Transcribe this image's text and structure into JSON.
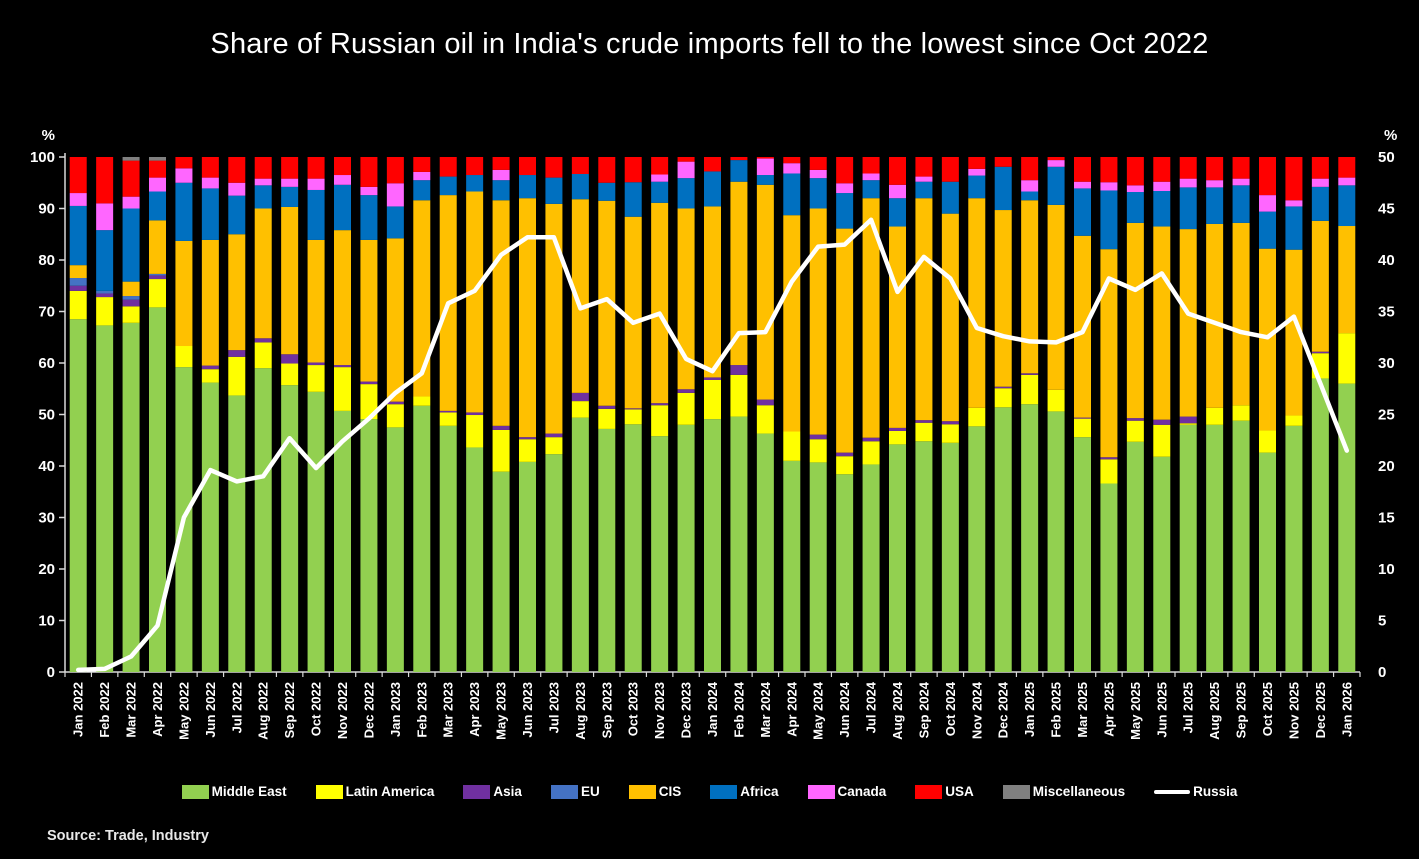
{
  "title": "Share of Russian oil in India's crude imports fell to the lowest since Oct 2022",
  "source": "Source: Trade, Industry",
  "left_axis_unit": "%",
  "right_axis_unit": "%",
  "colors": {
    "background": "#000000",
    "axis": "#d9d9d9",
    "text": "#ffffff",
    "middle_east": "#92d050",
    "latin_america": "#ffff00",
    "asia": "#7030a0",
    "eu": "#4472c4",
    "cis": "#ffc000",
    "africa": "#0070c0",
    "canada": "#ff66ff",
    "usa": "#ff0000",
    "miscellaneous": "#808080",
    "russia_line": "#ffffff"
  },
  "chart_data": {
    "type": "bar",
    "subtype": "stacked-100-with-line",
    "title": "Share of Russian oil in India's crude imports fell to the lowest since Oct 2022",
    "xlabel": "",
    "ylabel_left": "%",
    "ylabel_right": "%",
    "ylim_left": [
      0,
      100
    ],
    "ytick_step_left": 10,
    "ylim_right": [
      0,
      50
    ],
    "ytick_step_right": 5,
    "grid": false,
    "legend_position": "bottom",
    "categories": [
      "Jan 2022",
      "Feb 2022",
      "Mar 2022",
      "Apr 2022",
      "May 2022",
      "Jun 2022",
      "Jul 2022",
      "Aug 2022",
      "Sep 2022",
      "Oct 2022",
      "Nov 2022",
      "Dec 2022",
      "Jan 2023",
      "Feb 2023",
      "Mar 2023",
      "Apr 2023",
      "May 2023",
      "Jun 2023",
      "Jul 2023",
      "Aug 2023",
      "Sep 2023",
      "Oct 2023",
      "Nov 2023",
      "Dec 2023",
      "Jan 2024",
      "Feb 2024",
      "Mar 2024",
      "Apr 2024",
      "May 2024",
      "Jun 2024",
      "Jul 2024",
      "Aug 2024",
      "Sep 2024",
      "Oct 2024",
      "Nov 2024",
      "Dec 2024",
      "Jan 2025",
      "Feb 2025",
      "Mar 2025",
      "Apr 2025",
      "May 2025",
      "Jun 2025",
      "Jul 2025",
      "Aug 2025",
      "Sep 2025",
      "Oct 2025",
      "Nov 2025",
      "Dec 2025",
      "Jan 2026"
    ],
    "series": [
      {
        "name": "Middle East",
        "color_key": "middle_east",
        "axis": "left",
        "values": [
          68.5,
          67.3,
          67.8,
          70.8,
          59.2,
          56.2,
          53.7,
          59.0,
          55.7,
          54.4,
          50.7,
          49.1,
          47.5,
          51.7,
          47.8,
          43.6,
          38.9,
          40.8,
          42.3,
          49.4,
          47.2,
          48.1,
          45.8,
          48.0,
          49.1,
          49.6,
          46.3,
          41.0,
          40.7,
          38.4,
          40.3,
          44.2,
          44.8,
          44.5,
          47.7,
          51.4,
          52.0,
          50.6,
          45.6,
          36.6,
          44.7,
          41.8,
          48.0,
          48.0,
          48.8,
          42.6,
          47.8,
          57.0,
          56.0
        ]
      },
      {
        "name": "Latin America",
        "color_key": "latin_america",
        "axis": "left",
        "values": [
          5.5,
          5.5,
          3.2,
          5.5,
          4.1,
          2.6,
          7.5,
          5.0,
          4.2,
          5.2,
          8.5,
          6.8,
          4.5,
          1.8,
          2.6,
          6.3,
          8.1,
          4.4,
          3.3,
          3.2,
          3.9,
          2.9,
          6.0,
          6.2,
          7.6,
          8.1,
          5.5,
          5.7,
          4.5,
          3.5,
          4.5,
          2.6,
          3.6,
          3.6,
          3.6,
          3.7,
          5.7,
          4.2,
          3.6,
          4.7,
          4.1,
          6.2,
          0.3,
          3.3,
          3.0,
          4.3,
          2.0,
          4.9,
          9.8
        ]
      },
      {
        "name": "Asia",
        "color_key": "asia",
        "axis": "left",
        "values": [
          1.0,
          0.7,
          1.3,
          0.7,
          0,
          0.7,
          1.3,
          0.8,
          1.8,
          0.5,
          0.4,
          0.5,
          0.5,
          0,
          0.3,
          0.5,
          0.8,
          0.4,
          0.7,
          1.6,
          0.6,
          0.2,
          0.4,
          0.7,
          0.5,
          1.9,
          1.1,
          0,
          0.9,
          0.7,
          0.7,
          0.6,
          0.5,
          0.6,
          0,
          0.3,
          0.3,
          0,
          0.2,
          0.4,
          0.5,
          1.0,
          1.3,
          0,
          0,
          0,
          0,
          0.3,
          0
        ]
      },
      {
        "name": "EU",
        "color_key": "eu",
        "axis": "left",
        "values": [
          1.5,
          0.5,
          0.7,
          0.3,
          0,
          0,
          0,
          0,
          0,
          0,
          0,
          0,
          0,
          0,
          0,
          0,
          0,
          0,
          0,
          0,
          0,
          0,
          0,
          0,
          0,
          0,
          0,
          0,
          0,
          0,
          0,
          0,
          0,
          0,
          0,
          0,
          0,
          0,
          0,
          0,
          0,
          0,
          0,
          0,
          0,
          0,
          0,
          0,
          0
        ]
      },
      {
        "name": "CIS",
        "color_key": "cis",
        "axis": "left",
        "values": [
          2.5,
          0,
          2.8,
          10.4,
          20.4,
          24.4,
          22.5,
          25.2,
          28.6,
          23.8,
          26.2,
          27.5,
          31.7,
          38.1,
          41.9,
          42.9,
          43.8,
          46.4,
          44.6,
          37.6,
          39.8,
          37.2,
          38.9,
          35.1,
          33.2,
          35.6,
          41.7,
          42.0,
          43.9,
          43.5,
          46.5,
          39.1,
          43.1,
          40.3,
          40.7,
          34.3,
          33.6,
          35.9,
          35.3,
          40.4,
          37.9,
          37.5,
          36.4,
          35.7,
          35.4,
          35.3,
          32.2,
          25.4,
          20.8
        ]
      },
      {
        "name": "Africa",
        "color_key": "africa",
        "axis": "left",
        "values": [
          11.5,
          11.8,
          14.2,
          5.6,
          11.3,
          10.0,
          7.5,
          4.5,
          3.9,
          9.7,
          8.8,
          8.7,
          6.2,
          3.9,
          3.6,
          3.2,
          3.9,
          4.5,
          5.1,
          4.9,
          3.5,
          6.7,
          4.1,
          5.9,
          6.8,
          4.2,
          1.9,
          8.1,
          5.9,
          6.9,
          3.5,
          5.5,
          3.2,
          6.2,
          4.4,
          8.4,
          1.7,
          7.4,
          9.2,
          11.4,
          6.0,
          6.9,
          8.1,
          7.1,
          7.3,
          7.2,
          8.4,
          6.6,
          7.9
        ]
      },
      {
        "name": "Canada",
        "color_key": "canada",
        "axis": "left",
        "values": [
          2.5,
          5.2,
          2.3,
          2.7,
          2.8,
          2.1,
          2.5,
          1.3,
          1.6,
          2.2,
          1.9,
          1.6,
          4.5,
          1.6,
          0,
          0,
          2.0,
          0,
          0,
          0,
          0,
          0,
          1.4,
          3.2,
          0,
          0,
          3.2,
          2.0,
          1.6,
          1.9,
          1.3,
          2.6,
          1.0,
          0,
          1.3,
          0,
          2.2,
          1.3,
          1.3,
          1.6,
          1.3,
          1.8,
          1.7,
          1.4,
          1.3,
          3.2,
          1.2,
          1.6,
          1.5
        ]
      },
      {
        "name": "USA",
        "color_key": "usa",
        "axis": "left",
        "values": [
          7.0,
          9.0,
          7.0,
          3.3,
          2.2,
          4.0,
          5.0,
          4.2,
          4.2,
          4.2,
          3.5,
          5.8,
          5.1,
          2.9,
          3.8,
          3.5,
          2.5,
          3.5,
          4.0,
          3.3,
          5.0,
          4.9,
          3.4,
          0.9,
          2.8,
          0.6,
          0.3,
          1.2,
          2.5,
          5.1,
          3.2,
          5.4,
          3.8,
          4.8,
          2.3,
          1.9,
          4.5,
          0.6,
          4.8,
          4.9,
          5.5,
          4.8,
          4.2,
          4.5,
          4.2,
          7.4,
          8.4,
          4.2,
          4.0
        ]
      },
      {
        "name": "Miscellaneous",
        "color_key": "miscellaneous",
        "axis": "left",
        "values": [
          0,
          0,
          0.7,
          0.7,
          0,
          0,
          0,
          0,
          0,
          0,
          0,
          0,
          0,
          0,
          0,
          0,
          0,
          0,
          0,
          0,
          0,
          0,
          0,
          0,
          0,
          0,
          0,
          0,
          0,
          0,
          0,
          0,
          0,
          0,
          0,
          0,
          0,
          0,
          0,
          0,
          0,
          0,
          0,
          0,
          0,
          0,
          0,
          0,
          0
        ]
      },
      {
        "name": "Russia",
        "color_key": "russia_line",
        "axis": "right",
        "type": "line",
        "values": [
          0.2,
          0.3,
          1.5,
          4.5,
          15.0,
          19.6,
          18.5,
          19.0,
          22.7,
          19.8,
          22.4,
          24.6,
          27.1,
          29.0,
          35.8,
          37.0,
          40.5,
          42.2,
          42.2,
          35.3,
          36.2,
          33.9,
          34.8,
          30.4,
          29.2,
          32.9,
          33.0,
          37.9,
          41.3,
          41.5,
          43.9,
          36.9,
          40.3,
          38.2,
          33.4,
          32.6,
          32.1,
          32.0,
          33.0,
          38.2,
          37.1,
          38.7,
          34.8,
          33.9,
          33.0,
          32.5,
          34.5,
          28.0,
          21.5
        ]
      }
    ]
  }
}
